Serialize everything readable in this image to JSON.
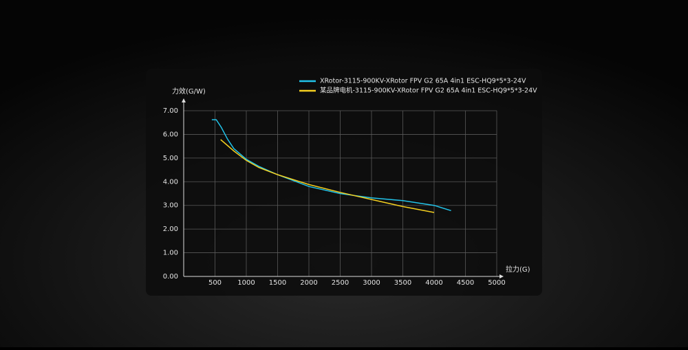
{
  "chart_data": {
    "type": "line",
    "y_label": "力效(G/W)",
    "x_label": "拉力(G)",
    "xlim": [
      0,
      5000
    ],
    "ylim": [
      0,
      7
    ],
    "xticks": [
      500,
      1000,
      1500,
      2000,
      2500,
      3000,
      3500,
      4000,
      4500,
      5000
    ],
    "yticks": [
      {
        "value": 0,
        "label": "0.00"
      },
      {
        "value": 1,
        "label": "1.00"
      },
      {
        "value": 2,
        "label": "2.00"
      },
      {
        "value": 3,
        "label": "3.00"
      },
      {
        "value": 4,
        "label": "4.00"
      },
      {
        "value": 5,
        "label": "5.00"
      },
      {
        "value": 6,
        "label": "6.00"
      },
      {
        "value": 7,
        "label": "7.00"
      }
    ],
    "grid": true,
    "series": [
      {
        "name": "XRotor-3115-900KV-XRotor FPV G2 65A 4in1 ESC-HQ9*5*3-24V",
        "color": "#22c4ea",
        "x": [
          450,
          520,
          600,
          700,
          800,
          1000,
          1200,
          1500,
          1800,
          2000,
          2500,
          3000,
          3500,
          4000,
          4270
        ],
        "values": [
          6.62,
          6.62,
          6.3,
          5.8,
          5.4,
          4.95,
          4.65,
          4.3,
          4.0,
          3.8,
          3.5,
          3.32,
          3.2,
          3.0,
          2.78
        ]
      },
      {
        "name": "某品牌电机-3115-900KV-XRotor FPV G2 65A 4in1 ESC-HQ9*5*3-24V",
        "color": "#f5d020",
        "x": [
          590,
          800,
          1000,
          1200,
          1500,
          2000,
          2500,
          3000,
          3500,
          4000
        ],
        "values": [
          5.78,
          5.3,
          4.9,
          4.6,
          4.3,
          3.88,
          3.55,
          3.25,
          2.95,
          2.7
        ]
      }
    ]
  }
}
